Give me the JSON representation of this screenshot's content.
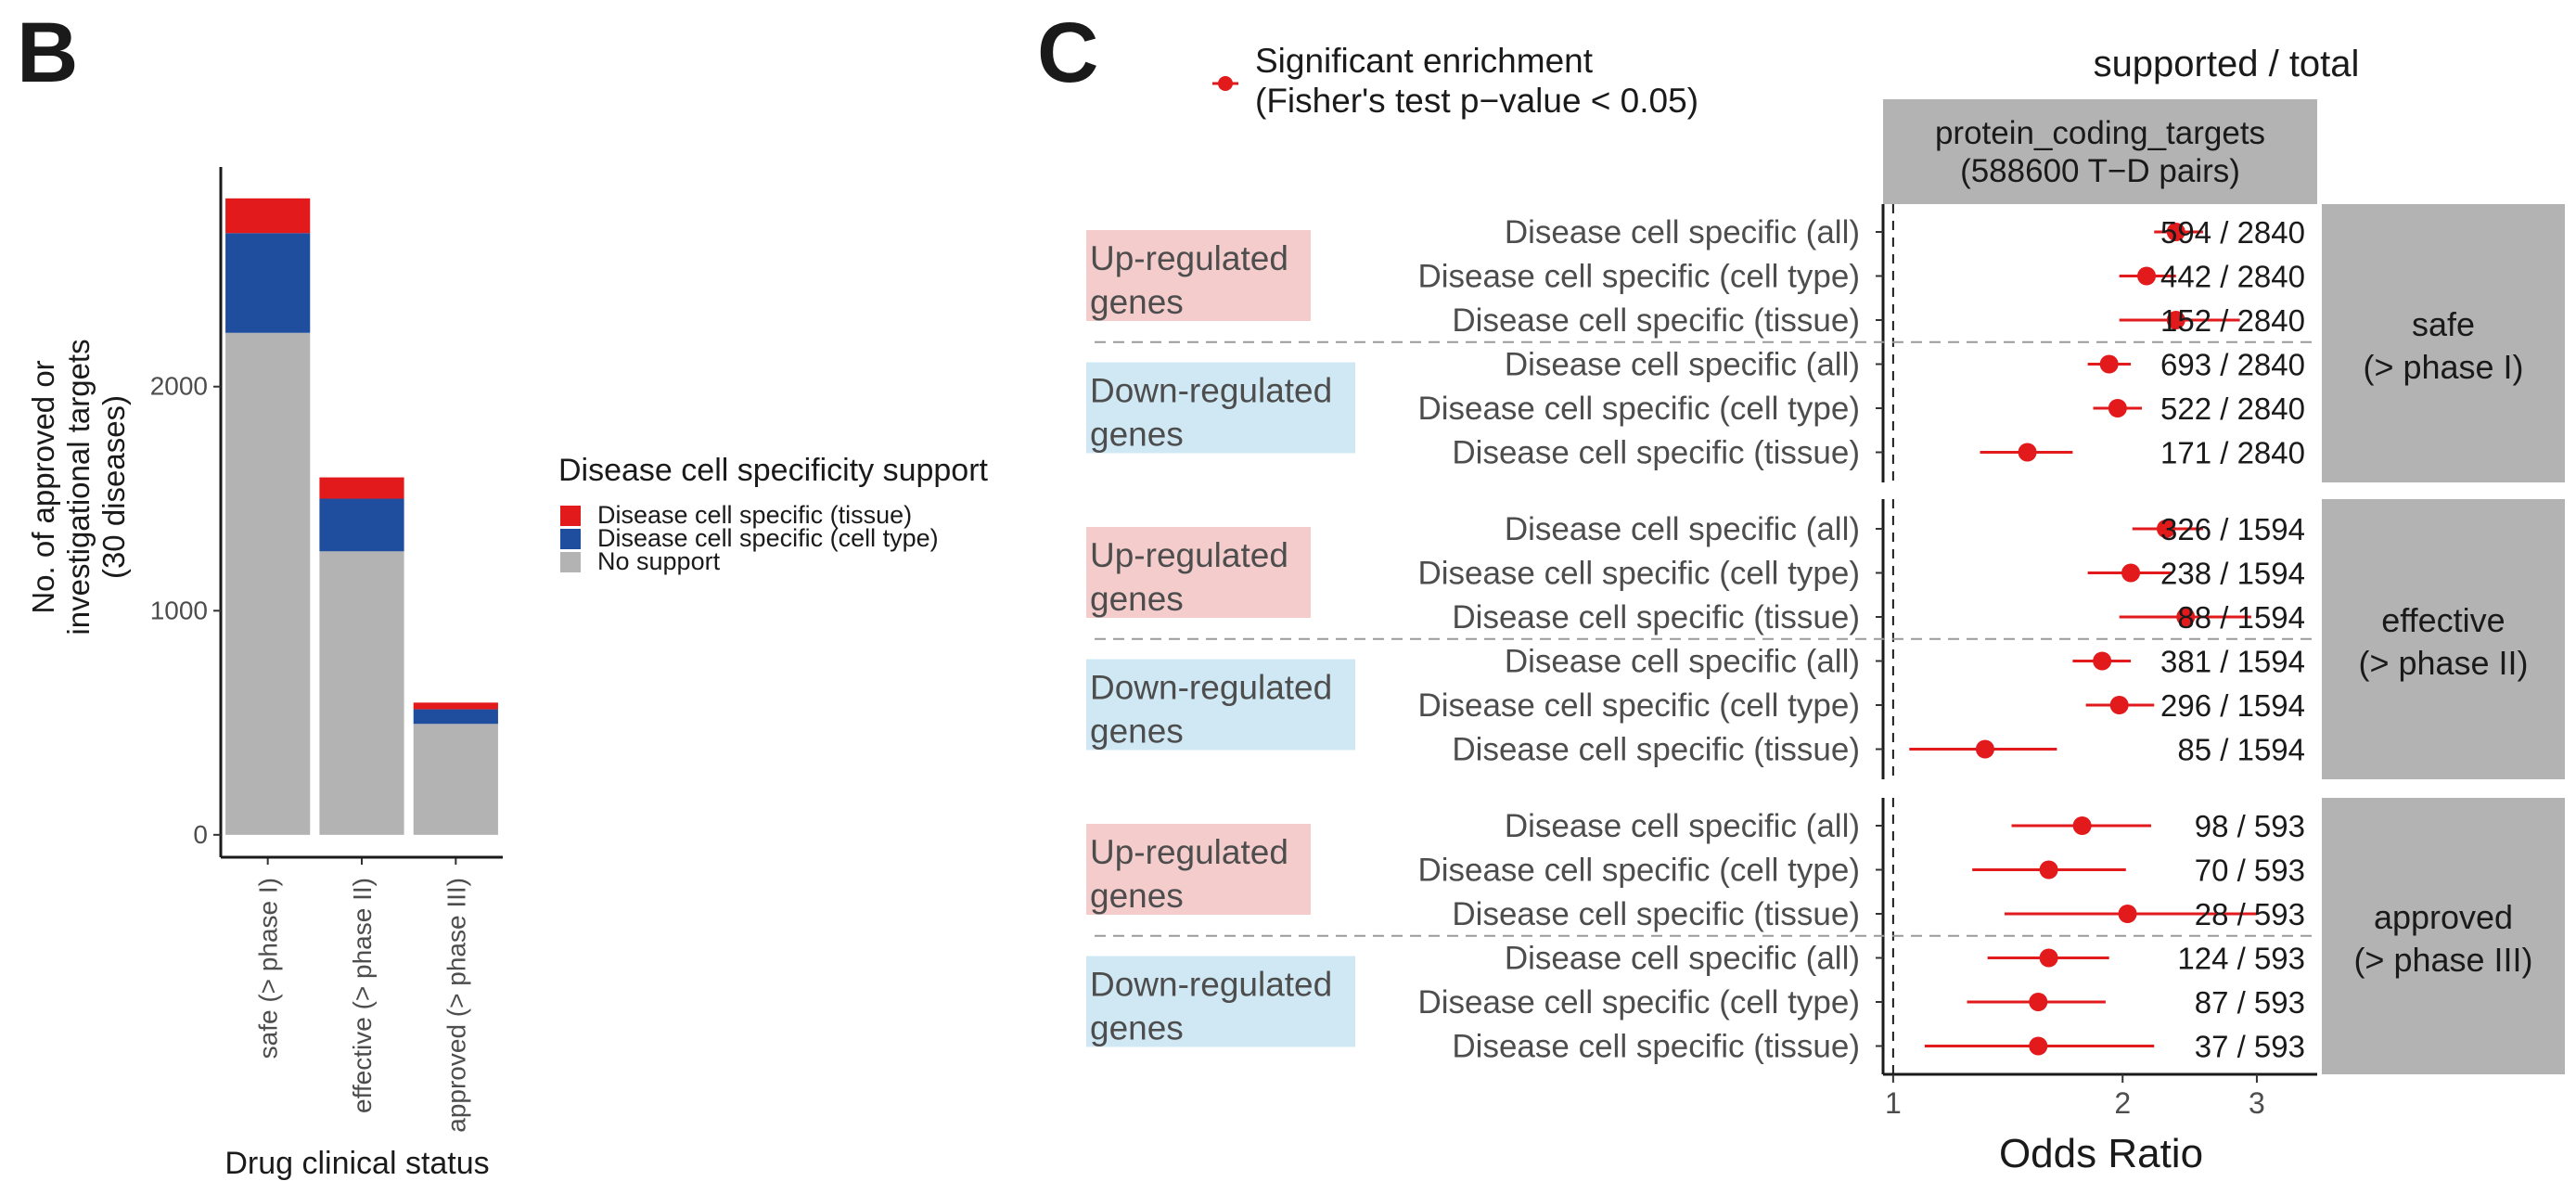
{
  "panels": {
    "b": {
      "letter": "B",
      "ylabel_lines": [
        "No. of approved or",
        "investigational targets",
        "(30 diseases)"
      ],
      "xlabel": "Drug clinical status",
      "legend_title": "Disease cell specificity support"
    },
    "c": {
      "letter": "C",
      "legend_lines": [
        "Significant enrichment",
        "(Fisher's test p−value < 0.05)"
      ],
      "column_header": "supported / total",
      "strip_lines": [
        "protein_coding_targets",
        "(588600 T−D pairs)"
      ],
      "xlabel": "Odds Ratio"
    }
  },
  "colors": {
    "tissue": "#e31a1c",
    "cell_type": "#1f4e9e",
    "no_support": "#b3b3b3",
    "up_bg": "#f4cccc",
    "down_bg": "#cfe8f3",
    "strip": "#b3b3b3",
    "point": "#e31a1c"
  },
  "chart_data": [
    {
      "type": "bar",
      "stacked": true,
      "categories": [
        "safe (> phase I)",
        "effective (> phase II)",
        "approved (> phase III)"
      ],
      "series": [
        {
          "name": "No support",
          "values": [
            2240,
            1265,
            495
          ]
        },
        {
          "name": "Disease cell specific (cell type)",
          "values": [
            445,
            235,
            65
          ]
        },
        {
          "name": "Disease cell specific (tissue)",
          "values": [
            155,
            95,
            30
          ]
        }
      ],
      "xlabel": "Drug clinical status",
      "ylabel": "No. of approved or investigational targets (30 diseases)",
      "yticks": [
        0,
        1000,
        2000
      ],
      "ylim": [
        -100,
        2980
      ],
      "legend_title": "Disease cell specificity support",
      "legend_labels": [
        "Disease cell specific (tissue)",
        "Disease cell specific (cell type)",
        "No support"
      ],
      "legend_position": "right",
      "grid": false
    },
    {
      "type": "scatter",
      "subtype": "forest",
      "x_scale": "log",
      "xlabel": "Odds Ratio",
      "xticks": [
        1,
        2,
        3
      ],
      "xlim": [
        0.97,
        3.6
      ],
      "reference_line": 1,
      "facet_strip": "protein_coding_targets (588600 T−D pairs)",
      "right_header": "supported / total",
      "legend": "Significant enrichment (Fisher's test p−value < 0.05)",
      "panels": [
        {
          "label": "safe (> phase I)",
          "groups": [
            {
              "label": "Up-regulated genes",
              "rows": [
                {
                  "name": "Disease cell specific (all)",
                  "or": 2.35,
                  "lo": 2.2,
                  "hi": 2.55,
                  "count": "594 / 2840"
                },
                {
                  "name": "Disease cell specific (cell type)",
                  "or": 2.15,
                  "lo": 1.98,
                  "hi": 2.35,
                  "count": "442 / 2840"
                },
                {
                  "name": "Disease cell specific (tissue)",
                  "or": 2.35,
                  "lo": 1.98,
                  "hi": 2.85,
                  "count": "152 / 2840"
                }
              ]
            },
            {
              "label": "Down-regulated genes",
              "rows": [
                {
                  "name": "Disease cell specific (all)",
                  "or": 1.92,
                  "lo": 1.8,
                  "hi": 2.05,
                  "count": "693 / 2840"
                },
                {
                  "name": "Disease cell specific (cell type)",
                  "or": 1.97,
                  "lo": 1.83,
                  "hi": 2.12,
                  "count": "522 / 2840"
                },
                {
                  "name": "Disease cell specific (tissue)",
                  "or": 1.5,
                  "lo": 1.3,
                  "hi": 1.72,
                  "count": "171 / 2840"
                }
              ]
            }
          ]
        },
        {
          "label": "effective (> phase II)",
          "groups": [
            {
              "label": "Up-regulated genes",
              "rows": [
                {
                  "name": "Disease cell specific (all)",
                  "or": 2.28,
                  "lo": 2.06,
                  "hi": 2.55,
                  "count": "326 / 1594"
                },
                {
                  "name": "Disease cell specific (cell type)",
                  "or": 2.05,
                  "lo": 1.8,
                  "hi": 2.32,
                  "count": "238 / 1594"
                },
                {
                  "name": "Disease cell specific (tissue)",
                  "or": 2.42,
                  "lo": 1.98,
                  "hi": 2.95,
                  "count": "88 / 1594"
                }
              ]
            },
            {
              "label": "Down-regulated genes",
              "rows": [
                {
                  "name": "Disease cell specific (all)",
                  "or": 1.88,
                  "lo": 1.72,
                  "hi": 2.05,
                  "count": "381 / 1594"
                },
                {
                  "name": "Disease cell specific (cell type)",
                  "or": 1.98,
                  "lo": 1.79,
                  "hi": 2.2,
                  "count": "296 / 1594"
                },
                {
                  "name": "Disease cell specific (tissue)",
                  "or": 1.32,
                  "lo": 1.05,
                  "hi": 1.64,
                  "count": "85 / 1594"
                }
              ]
            }
          ]
        },
        {
          "label": "approved (> phase III)",
          "groups": [
            {
              "label": "Up-regulated genes",
              "rows": [
                {
                  "name": "Disease cell specific (all)",
                  "or": 1.77,
                  "lo": 1.43,
                  "hi": 2.18,
                  "count": "98 / 593"
                },
                {
                  "name": "Disease cell specific (cell type)",
                  "or": 1.6,
                  "lo": 1.27,
                  "hi": 2.02,
                  "count": "70 / 593"
                },
                {
                  "name": "Disease cell specific (tissue)",
                  "or": 2.03,
                  "lo": 1.4,
                  "hi": 3.0,
                  "count": "28 / 593"
                }
              ]
            },
            {
              "label": "Down-regulated genes",
              "rows": [
                {
                  "name": "Disease cell specific (all)",
                  "or": 1.6,
                  "lo": 1.33,
                  "hi": 1.92,
                  "count": "124 / 593"
                },
                {
                  "name": "Disease cell specific (cell type)",
                  "or": 1.55,
                  "lo": 1.25,
                  "hi": 1.9,
                  "count": "87 / 593"
                },
                {
                  "name": "Disease cell specific (tissue)",
                  "or": 1.55,
                  "lo": 1.1,
                  "hi": 2.2,
                  "count": "37 / 593"
                }
              ]
            }
          ]
        }
      ]
    }
  ]
}
